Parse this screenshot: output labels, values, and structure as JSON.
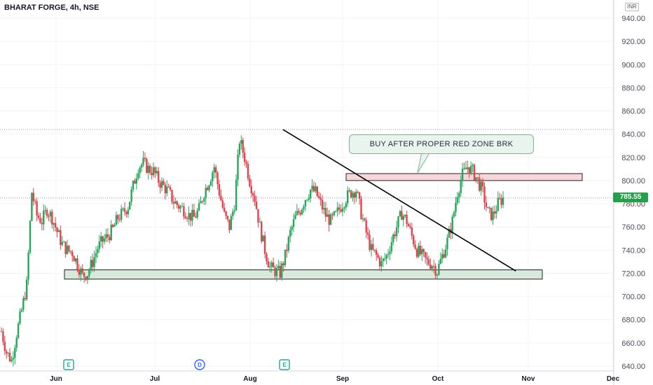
{
  "header": {
    "title": "BHARAT FORGE, 4h, NSE",
    "currency": "INR"
  },
  "price_tag": {
    "value": "785.55",
    "color": "#21a24a"
  },
  "annotation": {
    "text": "BUY AFTER PROPER RED ZONE BRK"
  },
  "events": [
    {
      "label": "E",
      "month": "Jun"
    },
    {
      "label": "D",
      "month": "Jul"
    },
    {
      "label": "E",
      "month": "Aug"
    }
  ],
  "chart_data": {
    "type": "candlestick",
    "title": "",
    "xlabel": "",
    "ylabel": "",
    "ylim": [
      635,
      950
    ],
    "y_ticks": [
      640,
      660,
      680,
      700,
      720,
      740,
      760,
      780,
      800,
      820,
      840,
      860,
      880,
      900,
      920,
      940
    ],
    "y_tick_labels": [
      "640.00",
      "660.00",
      "680.00",
      "700.00",
      "720.00",
      "740.00",
      "760.00",
      "780.00",
      "800.00",
      "820.00",
      "840.00",
      "860.00",
      "880.00",
      "900.00",
      "920.00",
      "940.00"
    ],
    "x_tick_labels": [
      "Jun",
      "Jul",
      "Aug",
      "Sep",
      "Oct",
      "Nov",
      "Dec"
    ],
    "colors": {
      "up": "#26a65b",
      "down": "#e0434c"
    },
    "close_path": [
      670,
      652,
      645,
      668,
      688,
      710,
      790,
      770,
      765,
      775,
      768,
      756,
      745,
      740,
      738,
      728,
      718,
      720,
      730,
      742,
      748,
      752,
      758,
      768,
      772,
      778,
      795,
      812,
      815,
      810,
      808,
      800,
      795,
      790,
      782,
      778,
      775,
      770,
      768,
      775,
      790,
      800,
      812,
      790,
      770,
      760,
      780,
      835,
      820,
      800,
      785,
      760,
      740,
      725,
      722,
      720,
      735,
      755,
      768,
      775,
      785,
      792,
      790,
      780,
      770,
      765,
      770,
      778,
      785,
      790,
      792,
      772,
      755,
      740,
      735,
      728,
      735,
      748,
      760,
      772,
      765,
      752,
      740,
      735,
      730,
      728,
      722,
      735,
      748,
      765,
      790,
      805,
      812,
      808,
      800,
      790,
      772,
      770,
      780,
      785
    ],
    "last_price": 785.55,
    "levels": {
      "red_zone": [
        800,
        806
      ],
      "support_zone": [
        715,
        723
      ],
      "high_dotted": 844,
      "last_dotted": 785
    },
    "trendline": {
      "start": [
        "2023-08-12",
        844
      ],
      "end": [
        "2023-10-28",
        722
      ]
    },
    "grid": true
  }
}
